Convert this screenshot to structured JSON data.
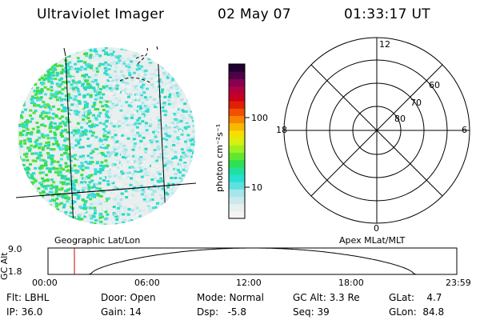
{
  "header": {
    "instrument": "Ultraviolet Imager",
    "date": "02 May 07",
    "time": "01:33:17 UT"
  },
  "colorbar": {
    "unit_label": "photon cm⁻²s⁻¹",
    "ticks": [
      "100",
      "10"
    ],
    "colors": [
      "#f4f4f4",
      "#e6f0f0",
      "#cbe8ea",
      "#a6e6ea",
      "#5ee0e0",
      "#28e0d0",
      "#20e0a0",
      "#30e050",
      "#60e830",
      "#a0f020",
      "#d8f010",
      "#f4e000",
      "#f8b800",
      "#f88400",
      "#f05000",
      "#e02000",
      "#c80020",
      "#b00040",
      "#880050",
      "#500048",
      "#200030"
    ]
  },
  "polar_plot": {
    "mlt_labels": [
      "12",
      "18",
      "6",
      "0"
    ],
    "lat_labels": [
      "60",
      "70",
      "80"
    ]
  },
  "image_labels": {
    "left": "Geographic Lat/Lon",
    "right": "Apex MLat/MLT"
  },
  "gc_alt_plot": {
    "ylabel": "GC Alt",
    "y_ticks": [
      "9.0",
      "1.8"
    ],
    "x_ticks": [
      "00:00",
      "06:00",
      "12:00",
      "18:00",
      "23:59"
    ],
    "current_time_marker_hours": 1.55,
    "marker_color": "#cc0000"
  },
  "info": {
    "flt": "Flt: LBHL",
    "ip": "IP: 36.0",
    "door": "Door: Open",
    "gain": "Gain: 14",
    "mode": "Mode: Normal",
    "dsp": "Dsp:   -5.8",
    "gc_alt": "GC Alt: 3.3 Re",
    "seq": "Seq: 39",
    "glat": "GLat:    4.7",
    "glon": "GLon:  84.8"
  }
}
